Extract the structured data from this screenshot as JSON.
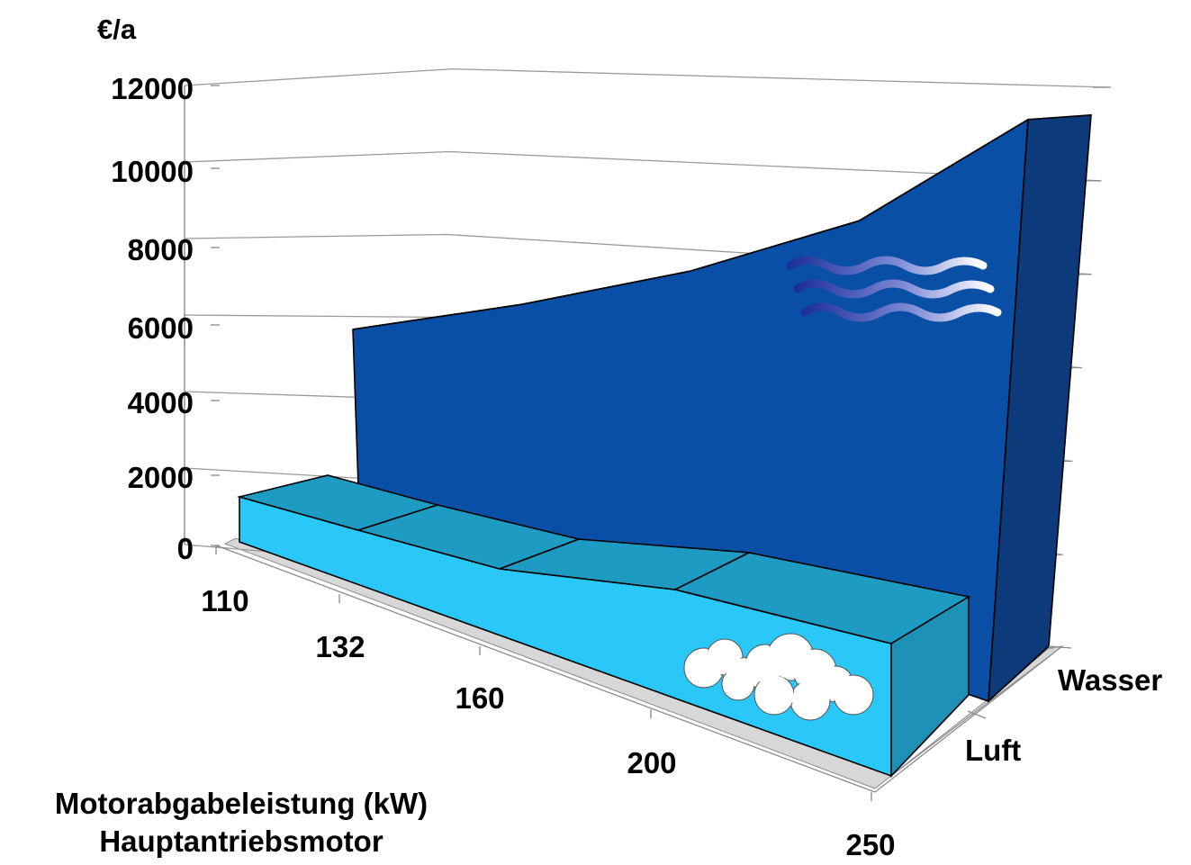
{
  "chart_data": {
    "type": "area",
    "view": "3d",
    "ylabel": "€/a",
    "ylim": [
      0,
      12000
    ],
    "yticks": [
      0,
      2000,
      4000,
      6000,
      8000,
      10000,
      12000
    ],
    "grid": true,
    "xlabel": [
      "Motorabgabeleistung (kW)",
      "Hauptantriebsmotor"
    ],
    "categories": [
      "110",
      "132",
      "160",
      "200",
      "250"
    ],
    "series": [
      {
        "name": "Luft",
        "values": [
          1300,
          1300,
          950,
          850,
          1200
        ],
        "color": "#29c8f8",
        "top_color": "#1e9bc2",
        "icon": "cloud-icon"
      },
      {
        "name": "Wasser",
        "values": [
          5100,
          5900,
          6900,
          8300,
          10900
        ],
        "color": "#0a4fa6",
        "side_color": "#0c3a7a",
        "icon": "water-waves-icon"
      }
    ]
  }
}
